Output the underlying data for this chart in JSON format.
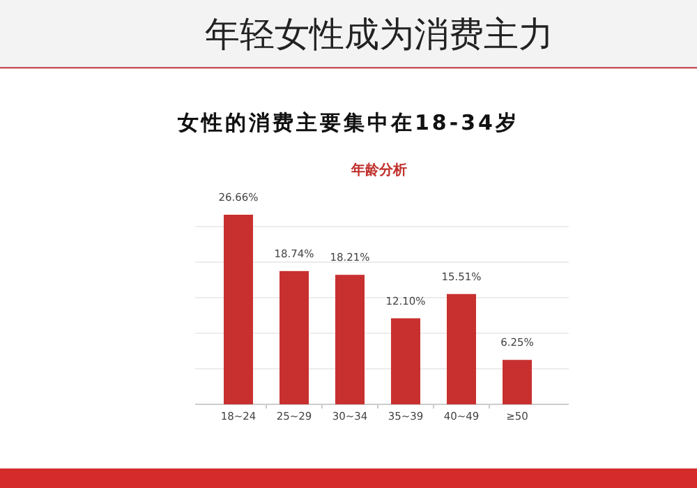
{
  "chart_data": {
    "type": "bar",
    "title": "年轻女性成为消费主力",
    "subtitle": "女性的消费主要集中在18-34岁",
    "annotations": [
      "年龄分析"
    ],
    "categories": [
      "18~24",
      "25~29",
      "30~34",
      "35~39",
      "40~49",
      "≥50"
    ],
    "values": [
      26.66,
      18.74,
      18.21,
      12.1,
      15.51,
      6.25
    ],
    "value_labels": [
      "26.66%",
      "18.74%",
      "18.21%",
      "12.10%",
      "15.51%",
      "6.25%"
    ],
    "color": "#c8302f",
    "yticks": [
      {
        "value": 0,
        "label": null
      },
      {
        "value": 5,
        "label": null
      },
      {
        "value": 10,
        "label": null
      },
      {
        "value": 15,
        "label": null
      },
      {
        "value": 20,
        "label": null
      },
      {
        "value": 25,
        "label": null
      }
    ],
    "grid": "y",
    "tick_labels": "x"
  }
}
